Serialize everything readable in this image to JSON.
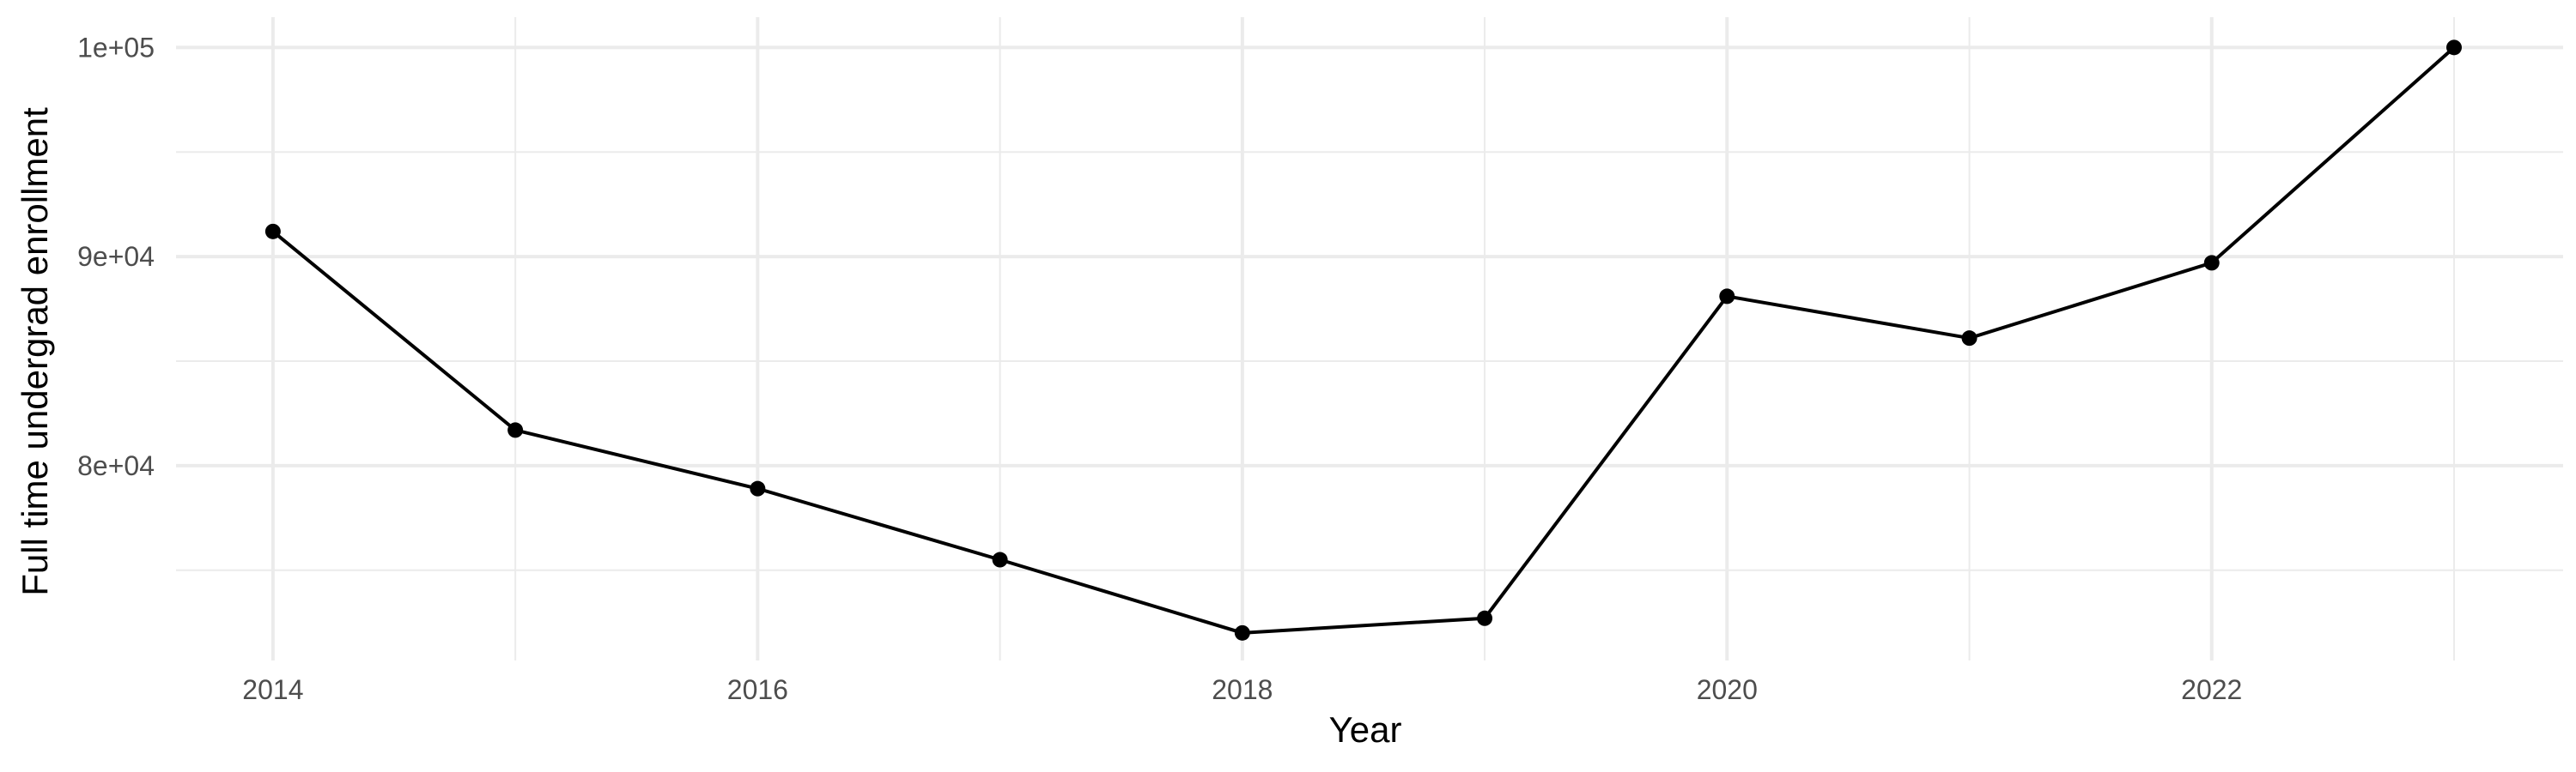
{
  "chart_data": {
    "type": "line",
    "title": "",
    "xlabel": "Year",
    "ylabel": "Full time undergrad enrollment",
    "x": [
      2014,
      2015,
      2016,
      2017,
      2018,
      2019,
      2020,
      2021,
      2022,
      2023
    ],
    "series": [
      {
        "values": [
          91200,
          81700,
          78900,
          75500,
          72000,
          72700,
          88100,
          86100,
          89700,
          100000
        ]
      }
    ],
    "xlim": [
      2013.6,
      2023.45
    ],
    "ylim": [
      70680,
      101450
    ],
    "x_ticks": [
      2014,
      2016,
      2018,
      2020,
      2022
    ],
    "x_tick_labels": [
      "2014",
      "2016",
      "2018",
      "2020",
      "2022"
    ],
    "x_minor_ticks": [
      2015,
      2017,
      2019,
      2021,
      2023
    ],
    "y_ticks": [
      80000,
      90000,
      100000
    ],
    "y_tick_labels": [
      "8e+04",
      "9e+04",
      "1e+05"
    ],
    "y_minor_ticks": [
      75000,
      85000,
      95000
    ],
    "grid": true,
    "legend": "none",
    "colors": {
      "line": "#000000",
      "point": "#000000",
      "grid": "#ebebeb",
      "tick_text": "#4d4d4d",
      "background": "#ffffff"
    }
  }
}
